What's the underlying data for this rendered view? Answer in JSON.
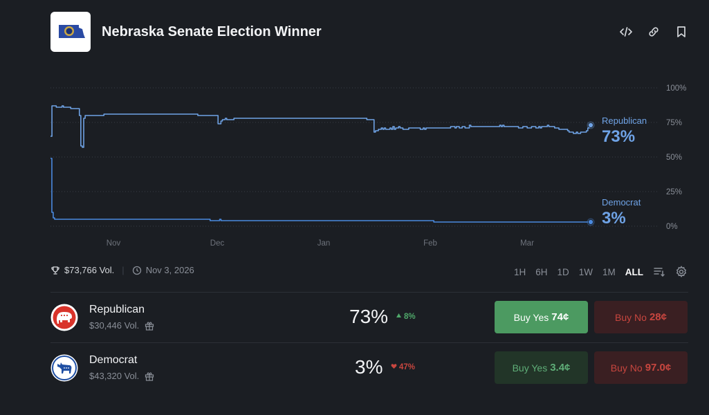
{
  "market": {
    "title": "Nebraska Senate Election Winner",
    "volume": "$73,766 Vol.",
    "end_date": "Nov 3, 2026"
  },
  "header_icons": [
    "embed-icon",
    "link-icon",
    "bookmark-icon"
  ],
  "ranges": [
    "1H",
    "6H",
    "1D",
    "1W",
    "1M",
    "ALL"
  ],
  "active_range": "ALL",
  "chart_data": {
    "type": "line",
    "x_ticks": [
      "Nov",
      "Dec",
      "Jan",
      "Feb",
      "Mar"
    ],
    "y_ticks": [
      "100%",
      "75%",
      "50%",
      "25%",
      "0%"
    ],
    "ylim": [
      0,
      100
    ],
    "series": [
      {
        "name": "Republican",
        "last_label": "73%",
        "color": "#6fa3e6",
        "values": [
          65,
          87,
          87,
          87,
          86,
          86,
          86,
          86,
          87,
          86,
          86,
          86,
          86,
          86,
          85,
          85,
          85,
          85,
          85,
          85,
          80,
          58,
          57,
          78,
          80,
          80,
          80,
          80,
          80,
          80,
          80,
          80,
          80,
          80,
          80,
          80,
          80,
          81,
          81,
          81,
          81,
          81,
          81,
          81,
          81,
          81,
          81,
          81,
          81,
          81,
          81,
          81,
          81,
          81,
          81,
          81,
          81,
          81,
          81,
          81,
          81,
          81,
          81,
          81,
          81,
          81,
          81,
          81,
          81,
          81,
          81,
          81,
          81,
          81,
          81,
          81,
          81,
          81,
          81,
          81,
          81,
          81,
          81,
          81,
          81,
          81,
          81,
          81,
          81,
          81,
          81,
          81,
          81,
          81,
          81,
          81,
          81,
          81,
          81,
          81,
          81,
          81,
          80,
          80,
          80,
          80,
          80,
          80,
          80,
          80,
          80,
          80,
          80,
          80,
          80,
          80,
          74,
          74,
          76,
          77,
          77,
          78,
          77,
          77,
          77,
          77,
          77,
          78,
          78,
          78,
          78,
          78,
          78,
          78,
          78,
          78,
          78,
          78,
          78,
          78,
          78,
          78,
          78,
          78,
          78,
          78,
          78,
          78,
          78,
          78,
          78,
          78,
          78,
          78,
          78,
          78,
          78,
          78,
          78,
          78,
          78,
          78,
          78,
          78,
          78,
          78,
          78,
          78,
          78,
          78,
          78,
          78,
          78,
          78,
          78,
          78,
          78,
          78,
          78,
          78,
          78,
          78,
          78,
          78,
          78,
          78,
          78,
          78,
          78,
          78,
          78,
          78,
          78,
          78,
          78,
          78,
          78,
          78,
          78,
          78,
          78,
          78,
          78,
          78,
          78,
          78,
          78,
          78,
          78,
          78,
          78,
          78,
          78,
          78,
          78,
          78,
          78,
          78,
          78,
          77,
          77,
          77,
          77,
          77,
          68,
          69,
          69,
          70,
          70,
          71,
          70,
          71,
          70,
          70,
          70,
          71,
          70,
          72,
          70,
          71,
          71,
          72,
          71,
          71,
          70,
          70,
          70,
          70,
          71,
          71,
          71,
          71,
          71,
          71,
          71,
          71,
          70,
          70,
          71,
          70,
          71,
          71,
          71,
          71,
          71,
          71,
          71,
          71,
          71,
          71,
          71,
          71,
          71,
          71,
          71,
          71,
          71,
          72,
          72,
          72,
          71,
          72,
          72,
          71,
          71,
          72,
          72,
          71,
          71,
          71,
          73,
          72,
          72,
          72,
          72,
          72,
          72,
          72,
          72,
          72,
          72,
          72,
          72,
          72,
          72,
          72,
          72,
          72,
          72,
          72,
          72,
          73,
          72,
          73,
          72,
          72,
          72,
          72,
          72,
          72,
          72,
          72,
          72,
          72,
          71,
          71,
          71,
          72,
          72,
          72,
          71,
          71,
          71,
          72,
          72,
          72,
          71,
          71,
          72,
          71,
          72,
          72,
          72,
          72,
          73,
          72,
          72,
          72,
          72,
          71,
          71,
          71,
          70,
          70,
          70,
          70,
          70,
          70,
          69,
          68,
          68,
          68,
          67,
          67,
          68,
          67,
          67,
          68,
          68,
          68,
          68,
          69,
          71,
          72,
          73
        ]
      },
      {
        "name": "Democrat",
        "last_label": "3%",
        "color": "#4a8ae0",
        "values": [
          49,
          10,
          6,
          5,
          5,
          5,
          5,
          5,
          5,
          5,
          5,
          5,
          5,
          5,
          5,
          5,
          5,
          5,
          5,
          5,
          5,
          5,
          5,
          5,
          5,
          5,
          5,
          5,
          5,
          5,
          5,
          5,
          5,
          5,
          5,
          5,
          5,
          5,
          5,
          5,
          5,
          5,
          5,
          5,
          5,
          5,
          5,
          5,
          5,
          5,
          5,
          5,
          5,
          5,
          5,
          5,
          5,
          5,
          5,
          5,
          5,
          5,
          5,
          5,
          5,
          5,
          5,
          5,
          5,
          5,
          5,
          5,
          5,
          5,
          5,
          5,
          5,
          5,
          5,
          5,
          5,
          5,
          5,
          5,
          5,
          5,
          5,
          5,
          5,
          5,
          5,
          5,
          5,
          5,
          5,
          5,
          5,
          5,
          5,
          5,
          5,
          5,
          5,
          5,
          5,
          5,
          5,
          5,
          5,
          5,
          5,
          5,
          5,
          5,
          5,
          5,
          5,
          4,
          4,
          4,
          4,
          4,
          4,
          4,
          5,
          4,
          4,
          4,
          4,
          4,
          4,
          4,
          4,
          4,
          4,
          4,
          4,
          4,
          4,
          4,
          4,
          4,
          4,
          4,
          4,
          4,
          4,
          4,
          4,
          4,
          4,
          4,
          4,
          4,
          4,
          4,
          4,
          4,
          4,
          4,
          4,
          4,
          4,
          4,
          4,
          4,
          4,
          4,
          4,
          4,
          4,
          4,
          4,
          4,
          4,
          4,
          4,
          4,
          4,
          4,
          4,
          4,
          4,
          4,
          4,
          4,
          4,
          4,
          4,
          4,
          4,
          4,
          4,
          4,
          4,
          4,
          4,
          4,
          4,
          4,
          4,
          4,
          4,
          4,
          4,
          4,
          4,
          4,
          4,
          4,
          4,
          4,
          4,
          4,
          4,
          4,
          4,
          4,
          4,
          4,
          4,
          4,
          4,
          4,
          4,
          4,
          4,
          4,
          4,
          4,
          4,
          4,
          4,
          4,
          4,
          4,
          4,
          4,
          4,
          4,
          4,
          4,
          4,
          4,
          4,
          4,
          4,
          4,
          4,
          4,
          4,
          4,
          4,
          4,
          4,
          4,
          4,
          4,
          4,
          4,
          4,
          4,
          4,
          4,
          4,
          4,
          4,
          4,
          4,
          4,
          4,
          4,
          4,
          4,
          4,
          4,
          4,
          4,
          4,
          4,
          4,
          3,
          3,
          3,
          3,
          3,
          3,
          3,
          3,
          3,
          3,
          3,
          3,
          3,
          3,
          3,
          3,
          3,
          3,
          3,
          3,
          3,
          3,
          3,
          3,
          3,
          3,
          3,
          3,
          3,
          3,
          3,
          3,
          3,
          3,
          3,
          3,
          3,
          3,
          3,
          3,
          3,
          3,
          3,
          3,
          3,
          3,
          3,
          3,
          3,
          3,
          3,
          3,
          3,
          3,
          3,
          3,
          3,
          3,
          3,
          3,
          3,
          3,
          3,
          3,
          3,
          3,
          3,
          3,
          3,
          3,
          3,
          3,
          3,
          3,
          3,
          3,
          3,
          3,
          3,
          3,
          3,
          3,
          3,
          3,
          3,
          3,
          3,
          3,
          3,
          3,
          3,
          3,
          3,
          3,
          3,
          3,
          3,
          3,
          3,
          3,
          3,
          3,
          3,
          3,
          3,
          3,
          3,
          3,
          3,
          3,
          3,
          3,
          3,
          3,
          3,
          3
        ]
      }
    ]
  },
  "outcomes": [
    {
      "name": "Republican",
      "volume": "$30,446 Vol.",
      "percent": "73%",
      "change": "8%",
      "change_dir": "up",
      "buy_yes_label": "Buy Yes",
      "buy_yes_price": "74¢",
      "buy_no_label": "Buy No",
      "buy_no_price": "28¢"
    },
    {
      "name": "Democrat",
      "volume": "$43,320 Vol.",
      "percent": "3%",
      "change": "47%",
      "change_dir": "down",
      "buy_yes_label": "Buy Yes",
      "buy_yes_price": "3.4¢",
      "buy_no_label": "Buy No",
      "buy_no_price": "97.0¢"
    }
  ]
}
